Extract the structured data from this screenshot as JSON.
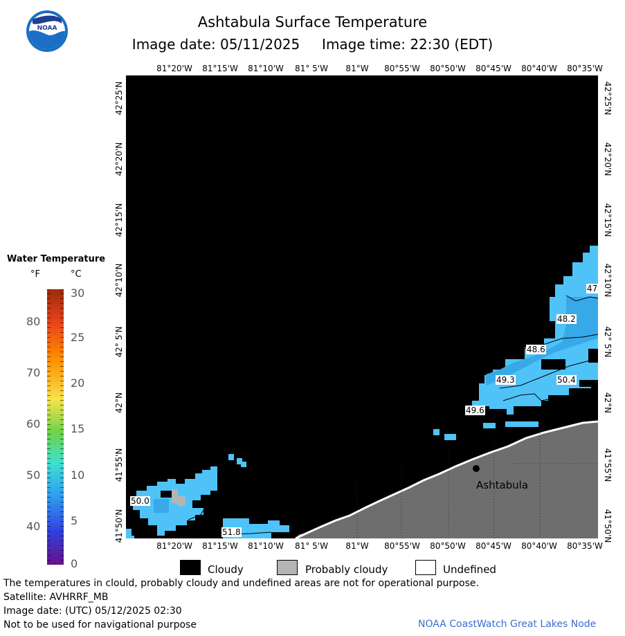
{
  "header": {
    "logo_text": "NOAA",
    "title": "Ashtabula Surface Temperature",
    "subtitle": "Image date: 05/11/2025     Image time: 22:30 (EDT)"
  },
  "map": {
    "lon_labels": [
      "81°20'W",
      "81°15'W",
      "81°10'W",
      "81° 5'W",
      "81°W",
      "80°55'W",
      "80°50'W",
      "80°45'W",
      "80°40'W",
      "80°35'W"
    ],
    "lat_labels": [
      "42°25'N",
      "42°20'N",
      "42°15'N",
      "42°10'N",
      "42° 5'N",
      "42°N",
      "41°55'N",
      "41°50'N"
    ],
    "city_label": "Ashtabula",
    "contour_labels": [
      "47",
      "48.2",
      "48.6",
      "49.3",
      "50.4",
      "49.6",
      "50.0",
      "51.8"
    ],
    "colors": {
      "cloud": "#000000",
      "land": "#6e6e6e",
      "water": "#4fc3f7",
      "water_deep": "#38a9e8",
      "probably_cloudy": "#b4b4b4"
    }
  },
  "legend": {
    "title": "Water Temperature",
    "unit_f": "°F",
    "unit_c": "°C",
    "f_ticks": [
      "80",
      "70",
      "60",
      "50",
      "40"
    ],
    "c_ticks": [
      "30",
      "25",
      "20",
      "15",
      "10",
      "5",
      "0"
    ]
  },
  "key": {
    "cloudy": "Cloudy",
    "probably_cloudy": "Probably cloudy",
    "undefined": "Undefined"
  },
  "footer": {
    "line1": "The temperatures in clould, probably cloudy and undefined areas are not for operational purpose.",
    "line2": "Satellite: AVHRRF_MB",
    "line3": "Image date: (UTC) 05/12/2025  02:30",
    "line4": "Not to be used for navigational purpose",
    "credit": "NOAA CoastWatch Great Lakes Node"
  }
}
